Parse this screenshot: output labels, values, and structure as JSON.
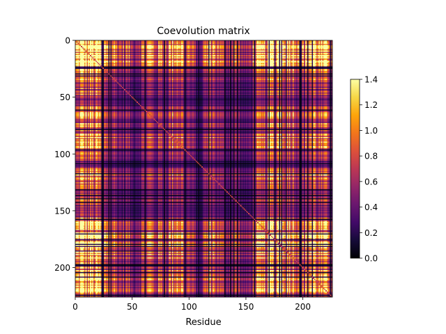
{
  "chart_data": {
    "type": "heatmap",
    "title": "Coevolution matrix",
    "xlabel": "Residue",
    "ylabel": "",
    "n_residues": 226,
    "xlim": [
      0,
      226
    ],
    "ylim": [
      226,
      0
    ],
    "x_ticks": [
      0,
      50,
      100,
      150,
      200
    ],
    "y_ticks": [
      0,
      50,
      100,
      150,
      200
    ],
    "colormap": "inferno",
    "colorbar": {
      "vmin": 0.0,
      "vmax": 1.4,
      "ticks": [
        "0.0",
        "0.2",
        "0.4",
        "0.6",
        "0.8",
        "1.0",
        "1.2",
        "1.4"
      ]
    },
    "matrix_model": "symmetric matrix M[i][j] = profile[i] * profile[j] plus a bright main diagonal; profile below is a per-residue approximation of the visible stripe pattern",
    "profile_anchors": [
      [
        0,
        0.7
      ],
      [
        5,
        1.05
      ],
      [
        10,
        0.85
      ],
      [
        15,
        1.0
      ],
      [
        20,
        0.95
      ],
      [
        25,
        0.65
      ],
      [
        30,
        0.8
      ],
      [
        35,
        0.55
      ],
      [
        40,
        0.45
      ],
      [
        45,
        0.5
      ],
      [
        50,
        0.35
      ],
      [
        55,
        0.45
      ],
      [
        60,
        0.55
      ],
      [
        65,
        0.7
      ],
      [
        70,
        0.5
      ],
      [
        75,
        0.6
      ],
      [
        80,
        0.55
      ],
      [
        85,
        0.75
      ],
      [
        90,
        0.85
      ],
      [
        95,
        0.65
      ],
      [
        100,
        0.5
      ],
      [
        105,
        0.35
      ],
      [
        110,
        0.3
      ],
      [
        115,
        0.6
      ],
      [
        120,
        0.7
      ],
      [
        125,
        0.55
      ],
      [
        130,
        0.4
      ],
      [
        135,
        0.45
      ],
      [
        140,
        0.5
      ],
      [
        145,
        0.4
      ],
      [
        150,
        0.3
      ],
      [
        155,
        0.45
      ],
      [
        160,
        0.7
      ],
      [
        165,
        0.65
      ],
      [
        170,
        0.85
      ],
      [
        175,
        1.0
      ],
      [
        180,
        1.1
      ],
      [
        185,
        1.05
      ],
      [
        190,
        0.9
      ],
      [
        195,
        0.8
      ],
      [
        200,
        0.6
      ],
      [
        205,
        0.85
      ],
      [
        210,
        0.95
      ],
      [
        215,
        0.7
      ],
      [
        220,
        0.75
      ],
      [
        225,
        0.8
      ]
    ]
  }
}
